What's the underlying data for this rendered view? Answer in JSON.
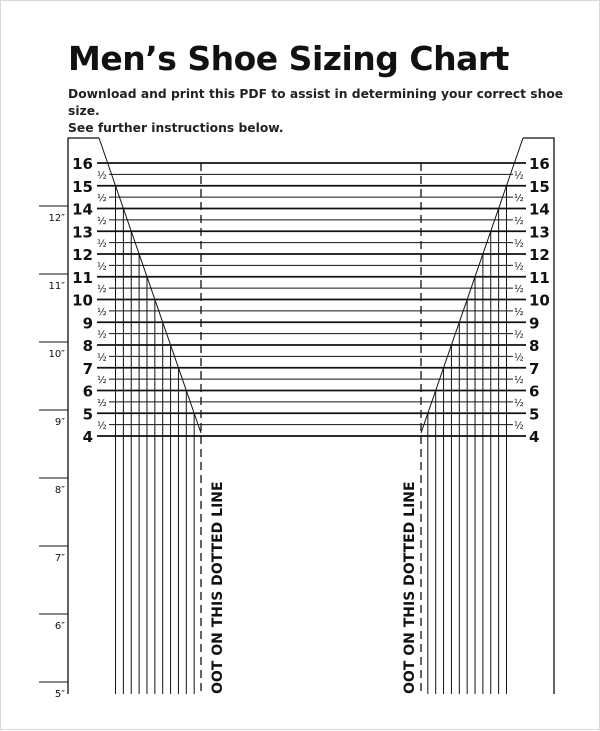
{
  "document": {
    "title": "Men’s Shoe Sizing Chart",
    "subtitle_line1": "Download and print this PDF to assist in determining your correct shoe size.",
    "subtitle_line2": "See further instructions below."
  },
  "chart": {
    "sizes": [
      "16",
      "15",
      "14",
      "13",
      "12",
      "11",
      "10",
      "9",
      "8",
      "7",
      "6",
      "5",
      "4"
    ],
    "half_label": "½",
    "inch_marks": [
      "12″",
      "11″",
      "10″",
      "9″",
      "8″",
      "7″",
      "6″",
      "5″"
    ],
    "dotted_line_text": "OOT ON THIS DOTTED LINE",
    "line_color": "#111111"
  }
}
